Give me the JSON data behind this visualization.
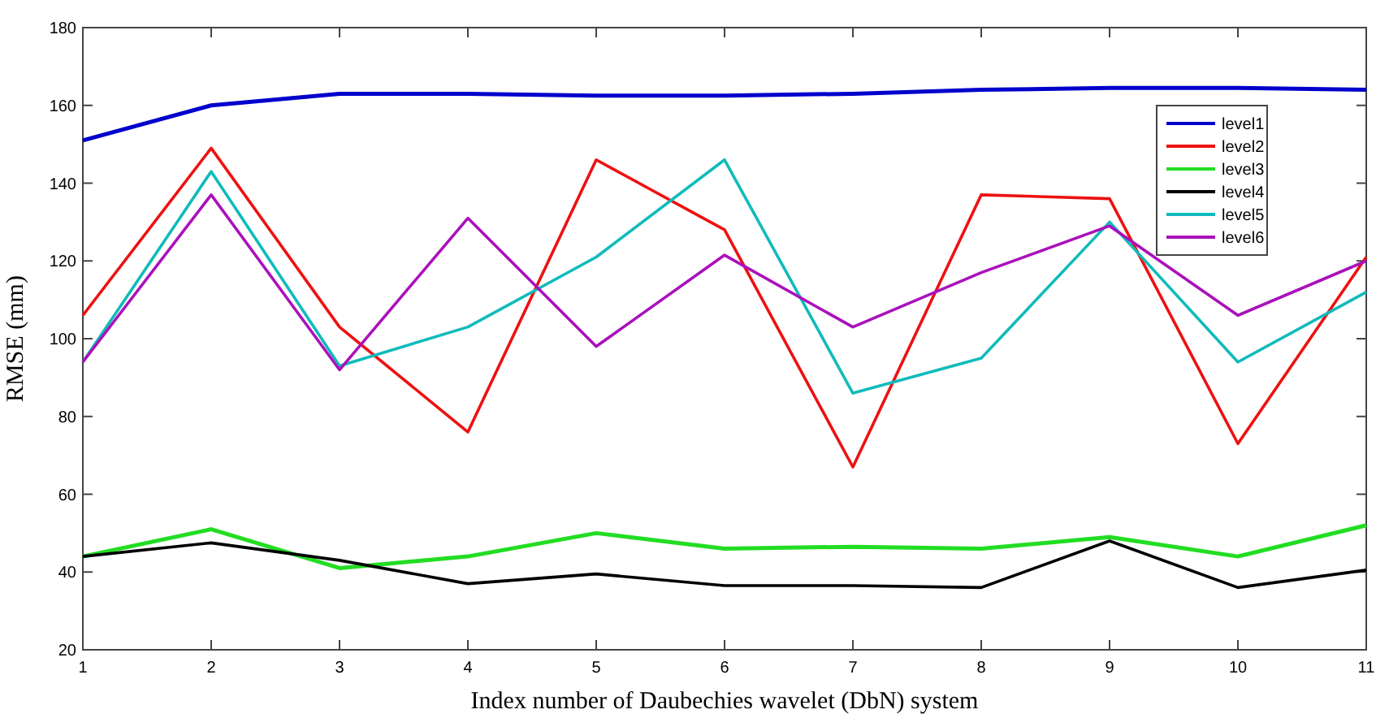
{
  "chart_data": {
    "type": "line",
    "xlabel": "Index number of Daubechies wavelet (DbN) system",
    "ylabel": "RMSE (mm)",
    "x": [
      1,
      2,
      3,
      4,
      5,
      6,
      7,
      8,
      9,
      10,
      11
    ],
    "xlim": [
      1,
      11
    ],
    "xticks": [
      1,
      2,
      3,
      4,
      5,
      6,
      7,
      8,
      9,
      10,
      11
    ],
    "ylim": [
      20,
      180
    ],
    "yticks": [
      20,
      40,
      60,
      80,
      100,
      120,
      140,
      160,
      180
    ],
    "grid": false,
    "legend": "top right",
    "marker": "none",
    "line_style": "solid",
    "series": [
      {
        "name": "level1",
        "color": "#0000cc",
        "values": [
          151,
          160,
          163,
          163,
          162.5,
          162.5,
          163,
          164,
          164.5,
          164.5,
          164
        ]
      },
      {
        "name": "level2",
        "color": "#ee1111",
        "values": [
          106,
          149,
          103,
          76,
          146,
          128,
          67,
          137,
          136,
          73,
          121
        ]
      },
      {
        "name": "level3",
        "color": "#22dd22",
        "values": [
          44,
          51,
          41,
          44,
          50,
          46,
          46.5,
          46,
          49,
          44,
          52
        ]
      },
      {
        "name": "level4",
        "color": "#000000",
        "values": [
          44,
          47.5,
          43,
          37,
          39.5,
          36.5,
          36.5,
          36,
          48,
          36,
          40.5
        ]
      },
      {
        "name": "level5",
        "color": "#11bbbb",
        "values": [
          94,
          143,
          93,
          103,
          121,
          146,
          86,
          95,
          130,
          94,
          112
        ]
      },
      {
        "name": "level6",
        "color": "#aa11bb",
        "values": [
          94,
          137,
          92,
          131,
          98,
          121.5,
          103,
          117,
          129,
          106,
          120
        ]
      }
    ]
  }
}
